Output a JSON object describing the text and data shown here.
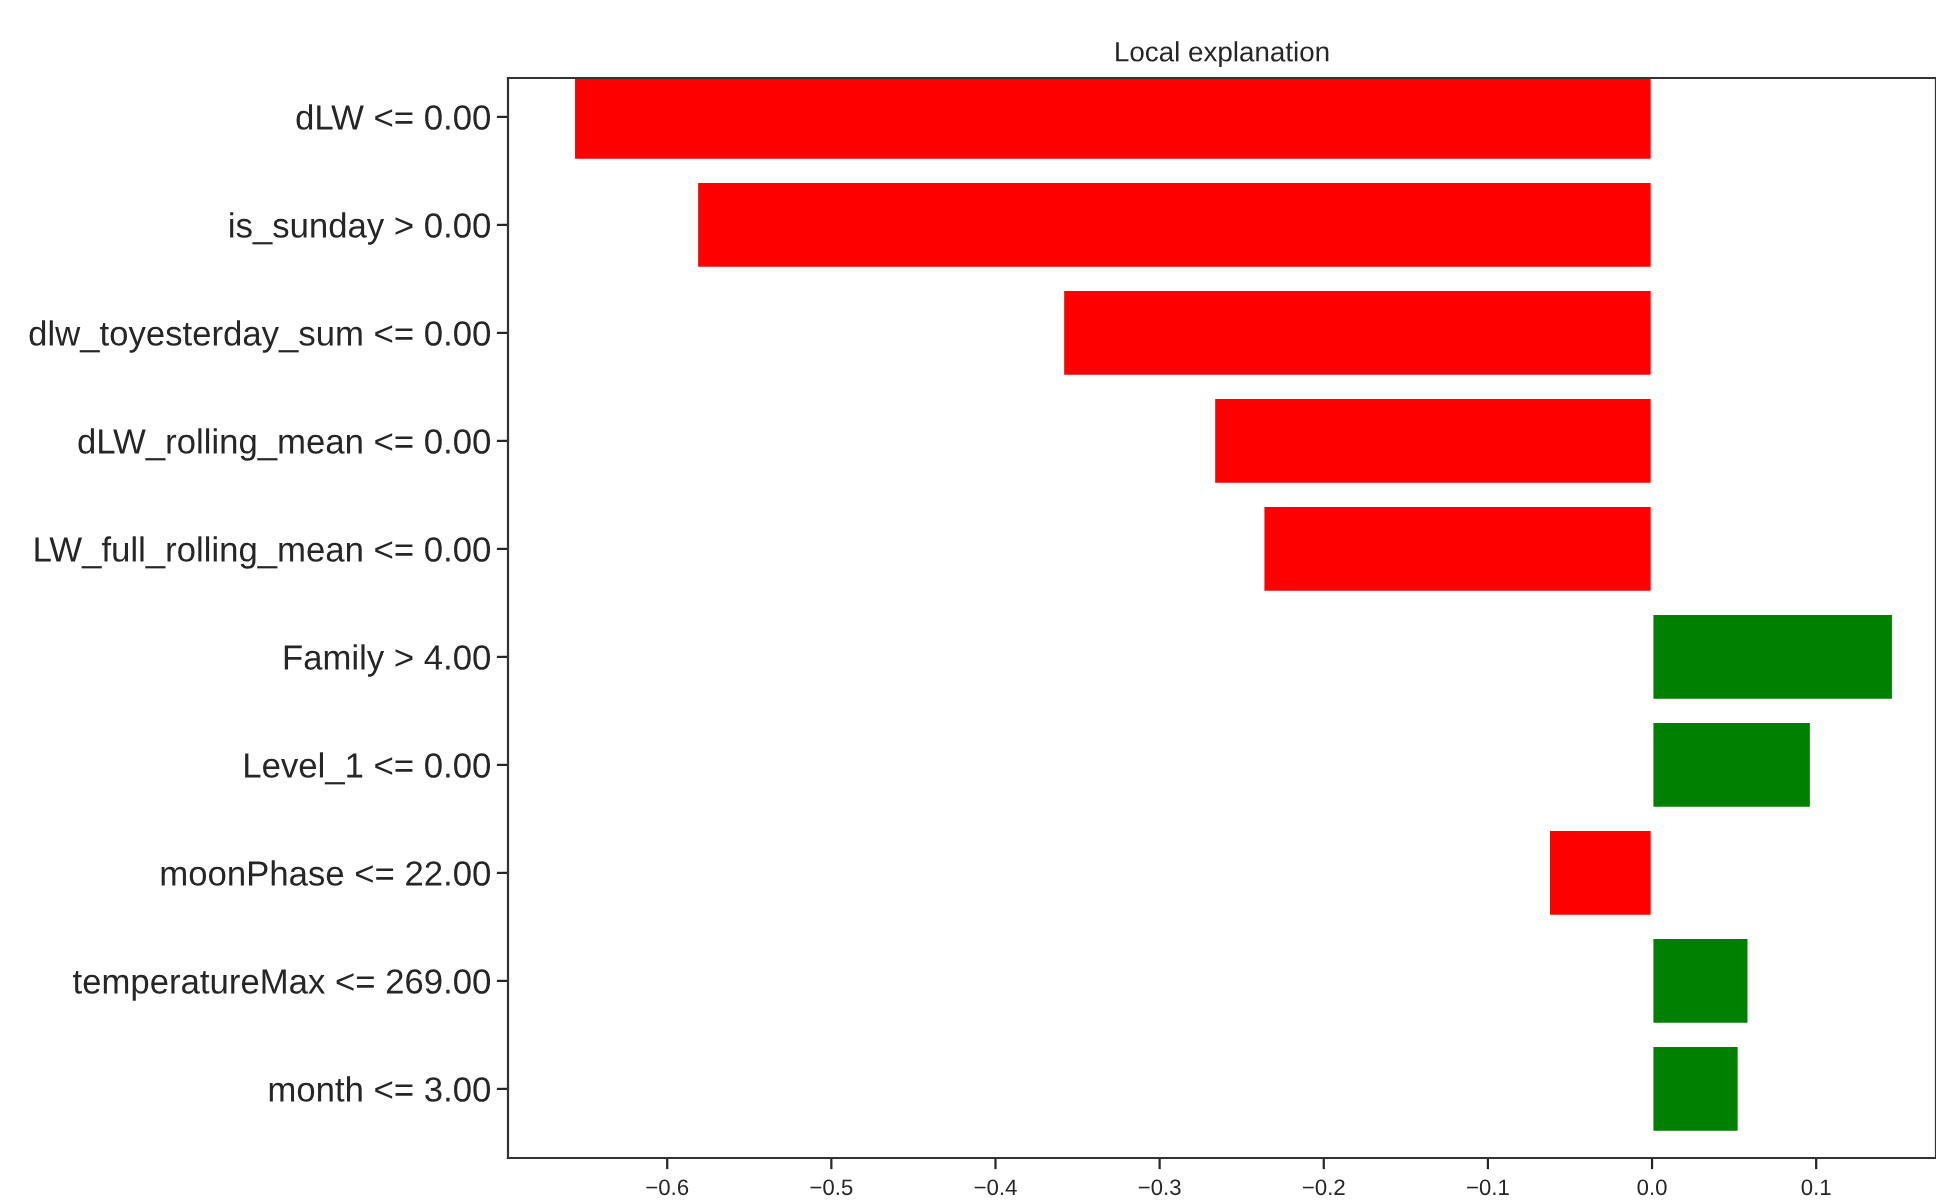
{
  "chart_data": {
    "type": "bar",
    "orientation": "horizontal",
    "title": "Local explanation",
    "categories": [
      "dLW <= 0.00",
      "is_sunday > 0.00",
      "dlw_toyesterday_sum <= 0.00",
      "dLW_rolling_mean <= 0.00",
      "LW_full_rolling_mean <= 0.00",
      "Family > 4.00",
      "Level_1 <= 0.00",
      "moonPhase <= 22.00",
      "temperatureMax <= 269.00",
      "month <= 3.00"
    ],
    "values": [
      -0.657,
      -0.582,
      -0.359,
      -0.267,
      -0.237,
      0.147,
      0.097,
      -0.063,
      0.059,
      0.053
    ],
    "colors": [
      "#ff0000",
      "#ff0000",
      "#ff0000",
      "#ff0000",
      "#ff0000",
      "#008000",
      "#008000",
      "#ff0000",
      "#008000",
      "#008000"
    ],
    "xlim": [
      -0.697,
      0.173
    ],
    "xticks": [
      {
        "value": -0.6,
        "label": "−0.6"
      },
      {
        "value": -0.5,
        "label": "−0.5"
      },
      {
        "value": -0.4,
        "label": "−0.4"
      },
      {
        "value": -0.3,
        "label": "−0.3"
      },
      {
        "value": -0.2,
        "label": "−0.2"
      },
      {
        "value": -0.1,
        "label": "−0.1"
      },
      {
        "value": 0.0,
        "label": "0.0"
      },
      {
        "value": 0.1,
        "label": "0.1"
      }
    ],
    "grid": false,
    "legend": false
  }
}
